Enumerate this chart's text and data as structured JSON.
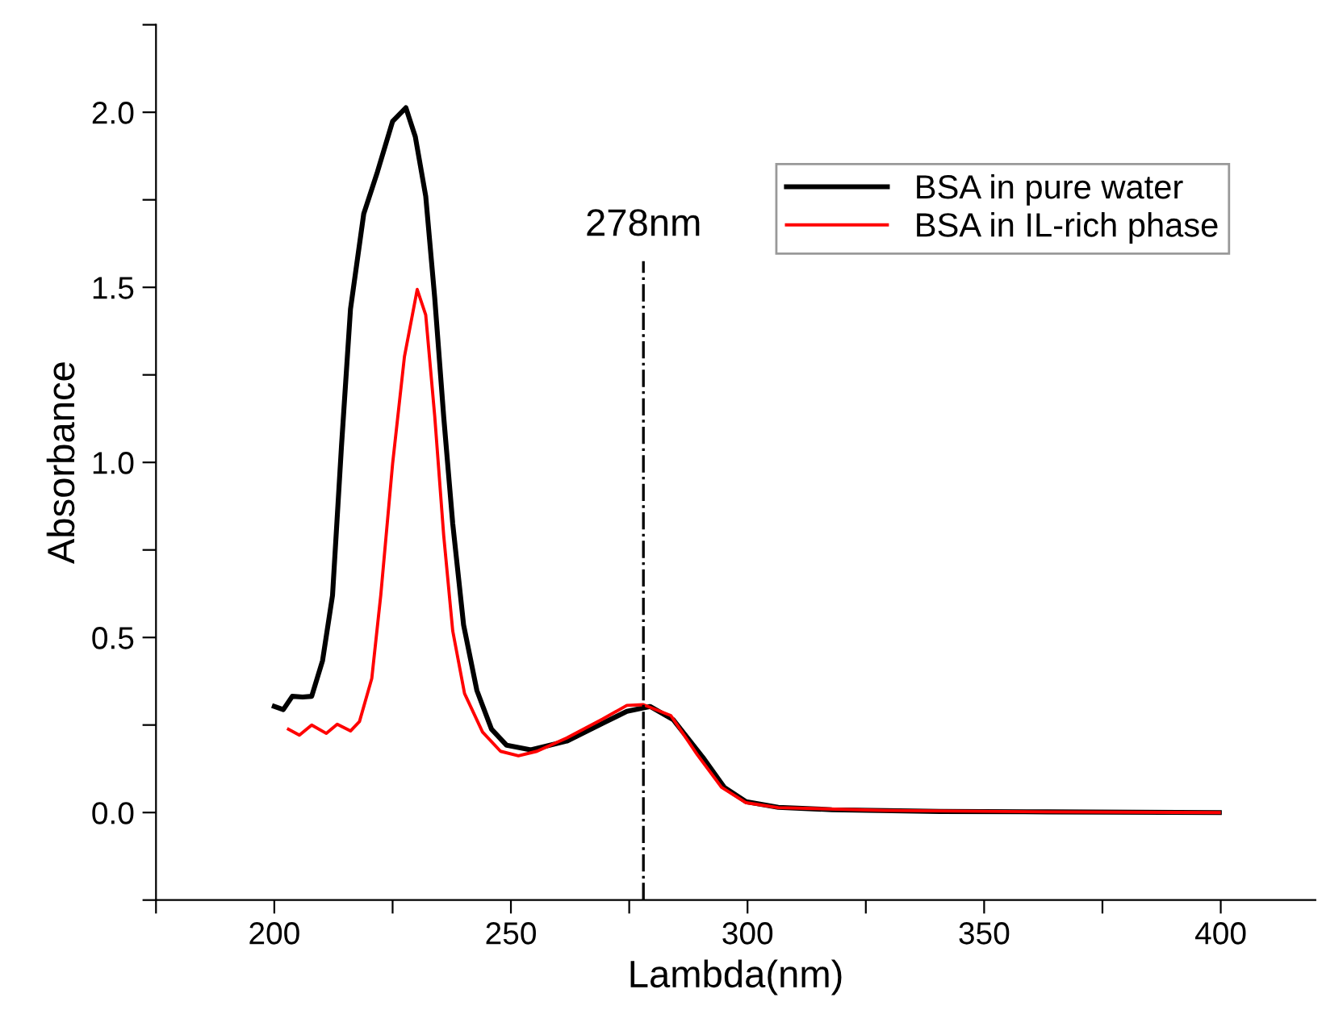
{
  "chart_data": {
    "type": "line",
    "xlabel": "Lambda(nm)",
    "ylabel": "Absorbance",
    "xlim": [
      175,
      420
    ],
    "ylim": [
      -0.25,
      2.25
    ],
    "xticks": [
      {
        "value": 175,
        "label": null
      },
      200,
      {
        "value": 225,
        "label": null
      },
      250,
      {
        "value": 275,
        "label": null
      },
      300,
      {
        "value": 325,
        "label": null
      },
      350,
      {
        "value": 375,
        "label": null
      },
      400
    ],
    "yticks": [
      {
        "value": -0.25,
        "label": null
      },
      {
        "value": 0,
        "label": "0.0"
      },
      {
        "value": 0.25,
        "label": null
      },
      0.5,
      {
        "value": 0.75,
        "label": null
      },
      {
        "value": 1,
        "label": "1.0"
      },
      {
        "value": 1.25,
        "label": null
      },
      1.5,
      {
        "value": 1.75,
        "label": null
      },
      {
        "value": 2,
        "label": "2.0"
      },
      {
        "value": 2.25,
        "label": null
      }
    ],
    "grid": false,
    "legend": "top right",
    "line_style": "solid",
    "ref_lines": [
      {
        "axis": "x",
        "value": 278,
        "label": "278nm",
        "color": "#000000",
        "line_style": "dashdot"
      }
    ],
    "series": [
      {
        "name": "BSA in pure water",
        "color": "#000000",
        "x": [
          200,
          201.9,
          203.8,
          206,
          207.9,
          210.2,
          212.3,
          214.2,
          216.1,
          218.9,
          221.8,
          225,
          227.8,
          229.8,
          232,
          233.9,
          235.8,
          237.7,
          240,
          242.8,
          245.9,
          249.1,
          254.2,
          261.8,
          269.4,
          274.5,
          279.4,
          284.3,
          290.6,
          295.1,
          299.7,
          306.5,
          317.8,
          340.6,
          363.3,
          399.7
        ],
        "values": [
          0.303,
          0.294,
          0.332,
          0.33,
          0.332,
          0.434,
          0.62,
          1.047,
          1.438,
          1.71,
          1.83,
          1.974,
          2.013,
          1.93,
          1.76,
          1.47,
          1.13,
          0.826,
          0.536,
          0.349,
          0.238,
          0.192,
          0.179,
          0.204,
          0.255,
          0.289,
          0.303,
          0.265,
          0.157,
          0.072,
          0.031,
          0.015,
          0.008,
          0.003,
          0.002,
          0.0
        ]
      },
      {
        "name": "BSA in IL-rich phase",
        "color": "#ff0000",
        "x": [
          203,
          205.3,
          207.9,
          211,
          213.3,
          216.1,
          218,
          220.6,
          222.5,
          225,
          227.5,
          230.2,
          232,
          233.9,
          235.8,
          237.7,
          240.2,
          244,
          247.8,
          251.6,
          255.5,
          261.8,
          269.4,
          274.5,
          278,
          283.8,
          289.4,
          294.5,
          299.7,
          306.5,
          329.2,
          363.3,
          399.7
        ],
        "values": [
          0.238,
          0.221,
          0.25,
          0.226,
          0.252,
          0.233,
          0.26,
          0.383,
          0.621,
          0.996,
          1.302,
          1.494,
          1.421,
          1.132,
          0.791,
          0.519,
          0.34,
          0.23,
          0.175,
          0.162,
          0.175,
          0.213,
          0.267,
          0.306,
          0.308,
          0.277,
          0.165,
          0.072,
          0.028,
          0.014,
          0.006,
          0.002,
          0.0
        ]
      }
    ]
  }
}
